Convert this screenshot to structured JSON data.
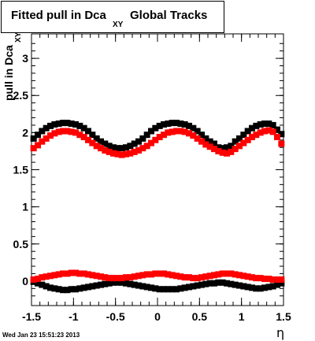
{
  "title": {
    "main": "Fitted pull in Dca",
    "sub": "XY",
    "suffix": "Global Tracks"
  },
  "timestamp": "Wed Jan 23 15:51:23 2013",
  "chart_data": {
    "type": "scatter",
    "xlabel": "η",
    "ylabel_main": "pull in Dca",
    "ylabel_sub": "XY",
    "xlim": [
      -1.5,
      1.5
    ],
    "ylim": [
      -0.33,
      3.33
    ],
    "x_ticks": [
      "-1.5",
      "-1",
      "-0.5",
      "0",
      "0.5",
      "1",
      "1.5"
    ],
    "x_tick_values": [
      -1.5,
      -1,
      -0.5,
      0,
      0.5,
      1,
      1.5
    ],
    "y_ticks": [
      "0",
      "0.5",
      "1",
      "1.5",
      "2",
      "2.5",
      "3"
    ],
    "y_tick_values": [
      0,
      0.5,
      1,
      1.5,
      2,
      2.5,
      3
    ],
    "grid": false,
    "series": [
      {
        "color": "#000000",
        "x_start": -1.475,
        "x_step": 0.05,
        "values": [
          1.92,
          1.97,
          2.02,
          2.06,
          2.09,
          2.11,
          2.12,
          2.13,
          2.13,
          2.12,
          2.11,
          2.09,
          2.06,
          2.02,
          1.97,
          1.92,
          1.88,
          1.85,
          1.82,
          1.8,
          1.79,
          1.79,
          1.8,
          1.82,
          1.85,
          1.88,
          1.92,
          1.97,
          2.02,
          2.06,
          2.09,
          2.11,
          2.12,
          2.13,
          2.13,
          2.12,
          2.11,
          2.09,
          2.06,
          2.02,
          1.97,
          1.92,
          1.88,
          1.85,
          1.8,
          1.79,
          1.8,
          1.82,
          1.88,
          1.92,
          1.97,
          2.02,
          2.06,
          2.09,
          2.11,
          2.12,
          2.12,
          2.1,
          2.04,
          1.98
        ]
      },
      {
        "color": "#ff0000",
        "x_start": -1.475,
        "x_step": 0.05,
        "values": [
          1.79,
          1.83,
          1.88,
          1.92,
          1.96,
          1.99,
          2.01,
          2.02,
          2.02,
          2.01,
          2.0,
          1.97,
          1.94,
          1.9,
          1.86,
          1.82,
          1.79,
          1.76,
          1.74,
          1.72,
          1.71,
          1.7,
          1.71,
          1.72,
          1.74,
          1.76,
          1.79,
          1.82,
          1.86,
          1.9,
          1.94,
          1.97,
          2.0,
          2.01,
          2.02,
          2.02,
          2.01,
          1.99,
          1.96,
          1.92,
          1.88,
          1.84,
          1.81,
          1.78,
          1.75,
          1.73,
          1.72,
          1.74,
          1.78,
          1.82,
          1.86,
          1.9,
          1.94,
          1.97,
          2.0,
          2.02,
          2.03,
          2.01,
          1.94,
          1.85
        ]
      },
      {
        "color": "#000000",
        "x_start": -1.475,
        "x_step": 0.05,
        "values": [
          -0.01,
          -0.03,
          -0.05,
          -0.07,
          -0.09,
          -0.1,
          -0.11,
          -0.12,
          -0.12,
          -0.11,
          -0.11,
          -0.1,
          -0.09,
          -0.08,
          -0.07,
          -0.06,
          -0.05,
          -0.04,
          -0.03,
          -0.02,
          -0.02,
          -0.02,
          -0.03,
          -0.04,
          -0.05,
          -0.06,
          -0.07,
          -0.08,
          -0.09,
          -0.1,
          -0.11,
          -0.11,
          -0.11,
          -0.11,
          -0.11,
          -0.1,
          -0.09,
          -0.08,
          -0.07,
          -0.06,
          -0.05,
          -0.04,
          -0.03,
          -0.03,
          -0.02,
          -0.02,
          -0.03,
          -0.04,
          -0.05,
          -0.06,
          -0.07,
          -0.08,
          -0.09,
          -0.1,
          -0.1,
          -0.09,
          -0.08,
          -0.07,
          -0.05,
          -0.03
        ]
      },
      {
        "color": "#ff0000",
        "x_start": -1.475,
        "x_step": 0.05,
        "values": [
          0.02,
          0.03,
          0.05,
          0.06,
          0.07,
          0.08,
          0.09,
          0.1,
          0.1,
          0.11,
          0.11,
          0.1,
          0.1,
          0.09,
          0.08,
          0.07,
          0.06,
          0.05,
          0.04,
          0.04,
          0.04,
          0.04,
          0.05,
          0.05,
          0.06,
          0.07,
          0.08,
          0.09,
          0.09,
          0.1,
          0.1,
          0.1,
          0.09,
          0.08,
          0.07,
          0.06,
          0.05,
          0.05,
          0.04,
          0.04,
          0.05,
          0.06,
          0.07,
          0.08,
          0.09,
          0.1,
          0.1,
          0.1,
          0.09,
          0.08,
          0.07,
          0.06,
          0.05,
          0.04,
          0.04,
          0.03,
          0.03,
          0.02,
          0.02,
          0.02
        ]
      }
    ]
  }
}
